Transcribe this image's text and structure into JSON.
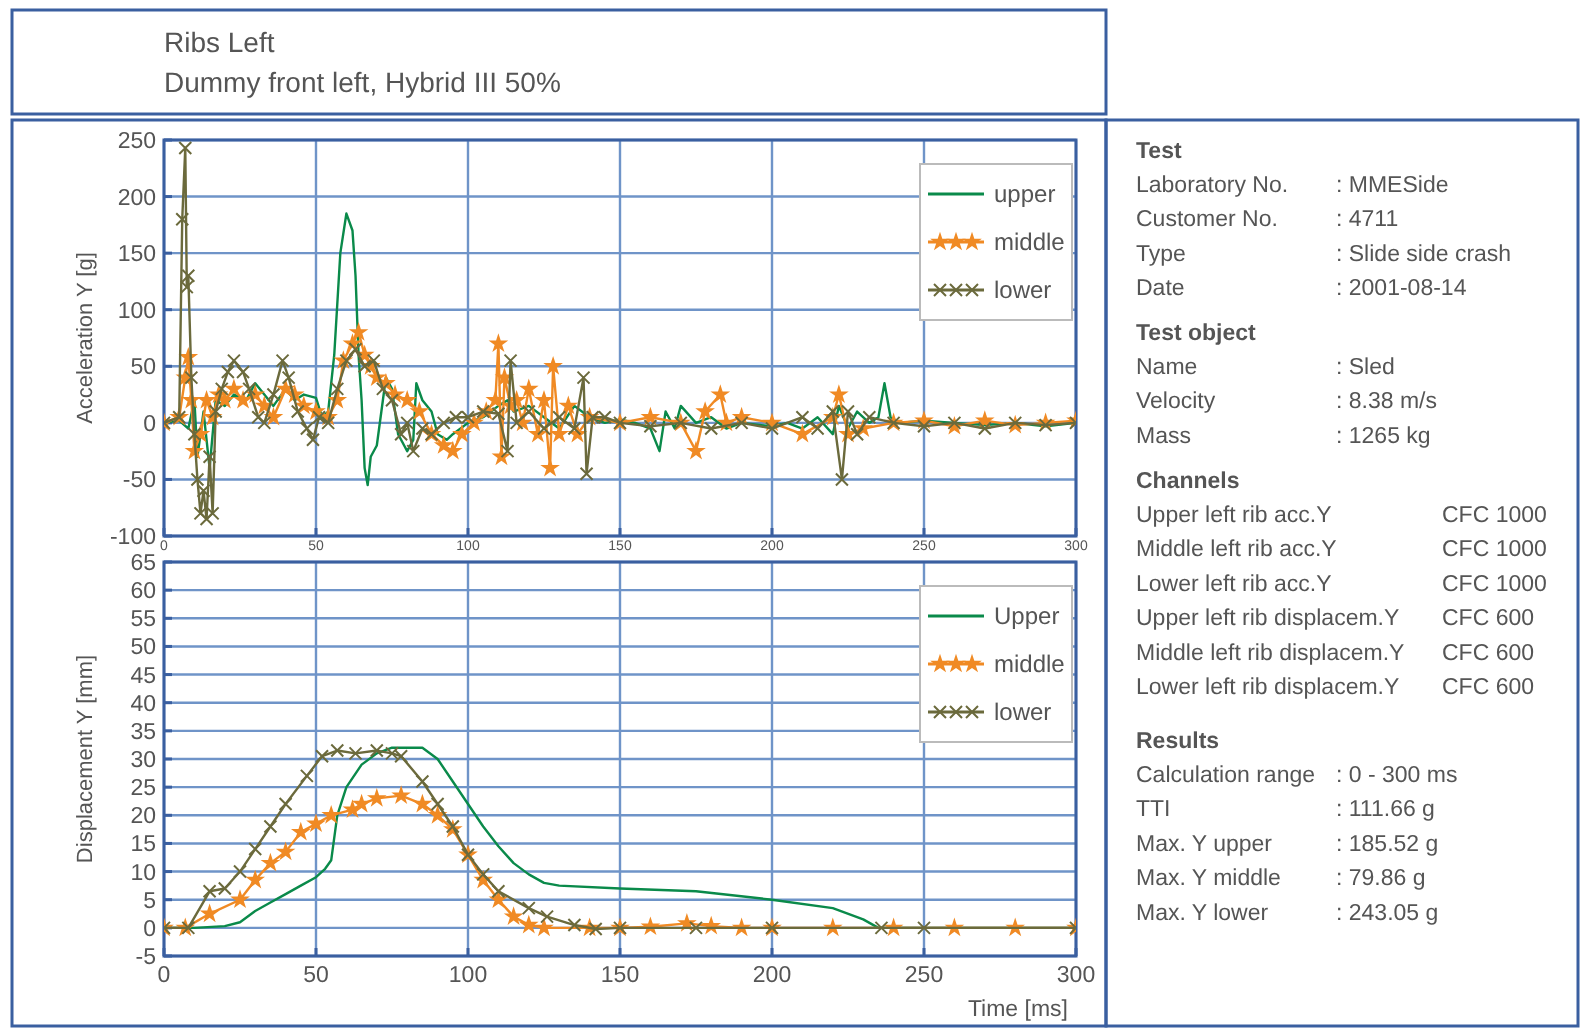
{
  "chart_data": [
    {
      "type": "line",
      "title": "Ribs Left",
      "subtitle": "Dummy front left, Hybrid III 50%",
      "ylabel": "Acceleration Y [g]",
      "xlim": [
        0,
        300
      ],
      "xticks": [
        0,
        50,
        100,
        150,
        200,
        250,
        300
      ],
      "ylim": [
        -100,
        250
      ],
      "yticks": [
        -100,
        -50,
        0,
        50,
        100,
        150,
        200,
        250
      ],
      "grid": true,
      "legend": "top right",
      "series": [
        {
          "name": "upper",
          "color": "#0a8a4a",
          "marker": "none",
          "x": [
            0,
            5,
            8,
            10,
            11,
            13,
            15,
            17,
            20,
            23,
            27,
            30,
            33,
            36,
            40,
            43,
            46,
            50,
            52,
            54,
            56,
            58,
            60,
            62,
            63,
            64,
            65,
            66,
            67,
            68,
            70,
            72,
            73,
            75,
            77,
            79,
            80,
            82,
            83,
            85,
            88,
            90,
            93,
            95,
            100,
            105,
            110,
            113,
            115,
            120,
            125,
            130,
            135,
            140,
            145,
            150,
            155,
            160,
            163,
            165,
            168,
            170,
            175,
            180,
            185,
            190,
            200,
            205,
            210,
            215,
            220,
            222,
            225,
            228,
            232,
            235,
            237,
            239,
            242,
            250,
            260,
            270,
            280,
            290,
            300
          ],
          "values": [
            0,
            2,
            -5,
            20,
            -30,
            10,
            -40,
            20,
            15,
            25,
            20,
            35,
            25,
            15,
            30,
            20,
            25,
            22,
            5,
            10,
            60,
            150,
            185,
            170,
            130,
            60,
            20,
            -40,
            -55,
            -30,
            -20,
            20,
            40,
            30,
            -10,
            -20,
            -25,
            -15,
            35,
            20,
            10,
            -10,
            -15,
            -10,
            0,
            5,
            15,
            20,
            10,
            15,
            5,
            -5,
            15,
            5,
            0,
            3,
            0,
            -5,
            -25,
            10,
            -5,
            15,
            0,
            5,
            -5,
            0,
            -3,
            0,
            -5,
            5,
            -10,
            15,
            -5,
            10,
            0,
            5,
            35,
            5,
            0,
            2,
            0,
            -2,
            0,
            -3,
            0
          ]
        },
        {
          "name": "middle",
          "color": "#f08a24",
          "marker": "star",
          "x": [
            0,
            5,
            7,
            8,
            9,
            10,
            12,
            14,
            16,
            18,
            20,
            23,
            26,
            30,
            33,
            36,
            40,
            43,
            46,
            50,
            54,
            57,
            59,
            62,
            64,
            66,
            68,
            70,
            73,
            76,
            80,
            84,
            88,
            92,
            95,
            98,
            102,
            106,
            109,
            110,
            111,
            112,
            114,
            116,
            118,
            120,
            123,
            125,
            127,
            128,
            130,
            133,
            136,
            140,
            150,
            160,
            170,
            175,
            178,
            183,
            185,
            190,
            200,
            210,
            220,
            222,
            225,
            230,
            240,
            250,
            260,
            270,
            280,
            290,
            300
          ],
          "values": [
            0,
            5,
            40,
            58,
            20,
            -25,
            -10,
            20,
            5,
            25,
            20,
            30,
            20,
            25,
            15,
            5,
            30,
            25,
            15,
            10,
            5,
            20,
            55,
            70,
            80,
            60,
            50,
            40,
            35,
            25,
            20,
            10,
            -10,
            -20,
            -25,
            -10,
            0,
            10,
            20,
            70,
            -30,
            40,
            15,
            20,
            0,
            30,
            -10,
            20,
            -40,
            50,
            -10,
            15,
            -10,
            5,
            0,
            5,
            0,
            -25,
            10,
            25,
            0,
            5,
            0,
            -10,
            5,
            25,
            -10,
            -5,
            0,
            2,
            -3,
            2,
            -2,
            0,
            2
          ]
        },
        {
          "name": "lower",
          "color": "#6b6a3c",
          "marker": "cross",
          "x": [
            0,
            5,
            6,
            7,
            7.5,
            8,
            9,
            10,
            11,
            12,
            13,
            14,
            15,
            16,
            17,
            19,
            21,
            23,
            26,
            28,
            31,
            33,
            36,
            39,
            41,
            44,
            47,
            49,
            51,
            54,
            57,
            60,
            63,
            66,
            69,
            72,
            75,
            78,
            80,
            82,
            85,
            88,
            92,
            96,
            100,
            105,
            110,
            113,
            114,
            116,
            120,
            125,
            130,
            135,
            138,
            139,
            141,
            145,
            150,
            160,
            170,
            180,
            190,
            200,
            210,
            215,
            220,
            223,
            225,
            228,
            232,
            240,
            250,
            260,
            270,
            280,
            290,
            300
          ],
          "values": [
            0,
            5,
            180,
            243,
            120,
            130,
            40,
            -10,
            -50,
            -80,
            -60,
            -85,
            -30,
            -80,
            10,
            30,
            45,
            55,
            45,
            30,
            5,
            0,
            25,
            55,
            40,
            10,
            -5,
            -15,
            5,
            0,
            30,
            55,
            65,
            50,
            55,
            30,
            20,
            -10,
            0,
            -25,
            -5,
            -10,
            0,
            5,
            5,
            10,
            8,
            -25,
            55,
            0,
            10,
            -5,
            5,
            -5,
            40,
            -45,
            5,
            5,
            0,
            -3,
            0,
            -5,
            0,
            -5,
            5,
            -5,
            10,
            -50,
            10,
            -10,
            5,
            0,
            -3,
            0,
            -5,
            0,
            -2,
            0
          ]
        }
      ]
    },
    {
      "type": "line",
      "xlabel": "Time [ms]",
      "ylabel": "Displacement Y [mm]",
      "xlim": [
        0,
        300
      ],
      "xticks": [
        0,
        50,
        100,
        150,
        200,
        250,
        300
      ],
      "ylim": [
        -5,
        65
      ],
      "yticks": [
        -5,
        0,
        5,
        10,
        15,
        20,
        25,
        30,
        35,
        40,
        45,
        50,
        55,
        60,
        65
      ],
      "grid": true,
      "legend": "top right",
      "series": [
        {
          "name": "Upper",
          "color": "#0a8a4a",
          "marker": "none",
          "x": [
            0,
            10,
            20,
            25,
            30,
            35,
            40,
            45,
            50,
            53,
            55,
            57,
            60,
            65,
            70,
            75,
            85,
            90,
            95,
            100,
            105,
            110,
            115,
            120,
            125,
            130,
            150,
            175,
            200,
            220,
            230,
            235,
            250,
            300
          ],
          "values": [
            0,
            0,
            0.3,
            1,
            3,
            4.5,
            6,
            7.5,
            9,
            10.5,
            12,
            20,
            25,
            29,
            31,
            32,
            32,
            30,
            26,
            22,
            18,
            14.5,
            11.5,
            9.5,
            8,
            7.5,
            7,
            6.5,
            5,
            3.5,
            1.5,
            0,
            0,
            0
          ]
        },
        {
          "name": "middle",
          "color": "#f08a24",
          "marker": "star",
          "x": [
            0,
            7,
            15,
            25,
            30,
            35,
            40,
            45,
            50,
            55,
            62,
            65,
            70,
            78,
            85,
            90,
            95,
            100,
            105,
            110,
            115,
            120,
            125,
            140,
            150,
            160,
            172,
            180,
            190,
            200,
            220,
            240,
            260,
            280,
            300
          ],
          "values": [
            0,
            0,
            2.5,
            5,
            8.5,
            11.5,
            13.5,
            17,
            18.5,
            20,
            21,
            22,
            23,
            23.5,
            22,
            20,
            17.5,
            13,
            8.5,
            5,
            2,
            0.5,
            0,
            0,
            0,
            0.2,
            0.8,
            0.3,
            0,
            0,
            0,
            0,
            0,
            0,
            0
          ]
        },
        {
          "name": "lower",
          "color": "#6b6a3c",
          "marker": "cross",
          "x": [
            0,
            8,
            15,
            20,
            25,
            30,
            35,
            40,
            47,
            52,
            57,
            63,
            70,
            75,
            78,
            85,
            90,
            95,
            100,
            105,
            110,
            120,
            126,
            135,
            142,
            150,
            175,
            200,
            236,
            250,
            300
          ],
          "values": [
            0,
            0,
            6.5,
            7,
            10,
            14,
            18,
            22,
            27,
            30.5,
            31.5,
            31,
            31.5,
            31,
            30.5,
            26,
            22,
            18,
            13,
            9.5,
            6.5,
            3.5,
            2,
            0.5,
            -0.2,
            0,
            0,
            0,
            0,
            0,
            0
          ]
        }
      ]
    },
    {
      "type": "other",
      "title": "Test",
      "annotations": [
        "Laboratory No.",
        ": MMESide",
        "Customer No.",
        ": 4711",
        "Type",
        ": Slide side crash",
        "Date",
        ": 2001-08-14"
      ]
    },
    {
      "type": "other",
      "title": "Test object",
      "annotations": [
        "Name",
        ": Sled",
        "Velocity",
        ": 8.38 m/s",
        "Mass",
        ": 1265 kg"
      ]
    },
    {
      "type": "other",
      "title": "Channels",
      "annotations": [
        "Upper left rib acc.Y",
        "CFC 1000",
        "Middle left rib acc.Y",
        "CFC 1000",
        "Lower left rib acc.Y",
        "CFC 1000",
        "Upper left rib displacem.Y",
        "CFC 600",
        "Middle left rib displacem.Y",
        "CFC 600",
        "Lower left rib displacem.Y",
        "CFC 600"
      ]
    },
    {
      "type": "other",
      "title": "Results",
      "annotations": [
        "Calculation range",
        ": 0 - 300 ms",
        "TTI",
        ": 111.66 g",
        "Max. Y upper",
        ": 185.52 g",
        "Max. Y middle",
        ": 79.86 g",
        "Max. Y lower",
        ": 243.05 g"
      ]
    }
  ]
}
